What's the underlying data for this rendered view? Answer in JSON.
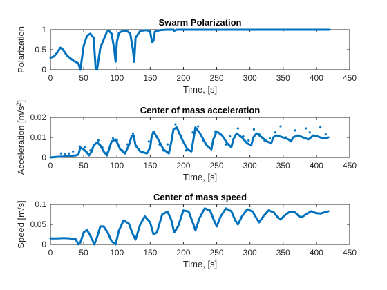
{
  "chart_data": [
    {
      "type": "line",
      "title": "Swarm Polarization",
      "xlabel": "Time, [s]",
      "ylabel": "Polarization",
      "xlim": [
        0,
        450
      ],
      "ylim": [
        0,
        1
      ],
      "xticks": [
        "0",
        "50",
        "100",
        "150",
        "200",
        "250",
        "300",
        "350",
        "400",
        "450"
      ],
      "yticks": [
        "0",
        "0.5",
        "1"
      ],
      "color": "#0072BD",
      "series": [
        {
          "style": "thick-line",
          "x": [
            0,
            5,
            10,
            15,
            18,
            25,
            35,
            42,
            45,
            50,
            55,
            60,
            65,
            68,
            70,
            75,
            85,
            88,
            92,
            96,
            98,
            100,
            103,
            110,
            115,
            120,
            124,
            126,
            128,
            135,
            145,
            150,
            153,
            155,
            157,
            165,
            175,
            185,
            186,
            190,
            200,
            220,
            260,
            300,
            350,
            420
          ],
          "y": [
            0.3,
            0.33,
            0.42,
            0.55,
            0.52,
            0.35,
            0.22,
            0.16,
            0.0,
            0.6,
            0.85,
            0.9,
            0.8,
            0.05,
            0.0,
            0.55,
            0.95,
            0.97,
            0.9,
            0.5,
            0.2,
            0.7,
            0.92,
            0.98,
            0.97,
            0.9,
            0.5,
            0.2,
            0.8,
            0.97,
            0.99,
            0.95,
            0.68,
            0.72,
            0.95,
            0.99,
            1.0,
            1.0,
            0.97,
            1.0,
            1.0,
            1.0,
            1.0,
            1.0,
            1.0,
            1.0
          ]
        }
      ]
    },
    {
      "type": "line",
      "title": "Center of mass acceleration",
      "xlabel": "Time, [s]",
      "ylabel": "Acceleration [m/s",
      "ylabel_superscript": "2",
      "ylabel_suffix": "]",
      "xlim": [
        0,
        450
      ],
      "ylim": [
        0,
        0.02
      ],
      "xticks": [
        "0",
        "50",
        "100",
        "150",
        "200",
        "250",
        "300",
        "350",
        "400",
        "450"
      ],
      "yticks": [
        "0",
        "0.01",
        "0.02"
      ],
      "color": "#0072BD",
      "series": [
        {
          "style": "thick-line",
          "x": [
            0,
            10,
            20,
            30,
            38,
            42,
            45,
            50,
            55,
            58,
            62,
            65,
            70,
            75,
            80,
            85,
            88,
            92,
            98,
            105,
            112,
            118,
            122,
            125,
            128,
            135,
            145,
            150,
            152,
            155,
            162,
            170,
            178,
            182,
            185,
            190,
            198,
            206,
            212,
            215,
            218,
            225,
            235,
            242,
            245,
            250,
            258,
            266,
            272,
            275,
            280,
            288,
            296,
            302,
            305,
            310,
            318,
            326,
            332,
            335,
            340,
            350,
            358,
            362,
            365,
            372,
            380,
            388,
            392,
            395,
            402,
            410,
            418
          ],
          "y": [
            0.0,
            0.0003,
            0.0005,
            0.0008,
            0.001,
            0.0015,
            0.005,
            0.004,
            0.0025,
            0.001,
            0.003,
            0.006,
            0.0075,
            0.006,
            0.003,
            0.001,
            0.004,
            0.008,
            0.009,
            0.004,
            0.002,
            0.006,
            0.0105,
            0.011,
            0.006,
            0.003,
            0.002,
            0.005,
            0.01,
            0.013,
            0.009,
            0.004,
            0.002,
            0.008,
            0.014,
            0.015,
            0.009,
            0.004,
            0.003,
            0.009,
            0.015,
            0.012,
            0.006,
            0.004,
            0.009,
            0.013,
            0.011,
            0.007,
            0.005,
            0.009,
            0.012,
            0.01,
            0.007,
            0.006,
            0.01,
            0.012,
            0.01,
            0.008,
            0.007,
            0.01,
            0.011,
            0.01,
            0.009,
            0.008,
            0.01,
            0.011,
            0.01,
            0.009,
            0.01,
            0.011,
            0.0105,
            0.0095,
            0.01
          ]
        },
        {
          "style": "dots",
          "x": [
            16,
            22,
            28,
            34,
            44,
            52,
            60,
            72,
            78,
            86,
            94,
            100,
            108,
            116,
            124,
            130,
            138,
            148,
            156,
            164,
            170,
            176,
            188,
            196,
            204,
            214,
            222,
            230,
            238,
            248,
            256,
            264,
            270,
            282,
            290,
            298,
            306,
            314,
            322,
            330,
            338,
            346,
            354,
            360,
            368,
            376,
            384,
            390,
            398,
            406,
            414
          ],
          "y": [
            0.002,
            0.0015,
            0.002,
            0.003,
            0.0055,
            0.005,
            0.0035,
            0.0085,
            0.005,
            0.0025,
            0.0095,
            0.0085,
            0.0035,
            0.0065,
            0.012,
            0.0055,
            0.0025,
            0.008,
            0.0125,
            0.0065,
            0.0035,
            0.0065,
            0.0165,
            0.011,
            0.0035,
            0.0125,
            0.0155,
            0.0085,
            0.0055,
            0.013,
            0.0115,
            0.0065,
            0.0105,
            0.0145,
            0.0105,
            0.0085,
            0.014,
            0.0115,
            0.0085,
            0.0095,
            0.0125,
            0.0155,
            0.01,
            0.0085,
            0.0135,
            0.0105,
            0.0145,
            0.0125,
            0.0105,
            0.015,
            0.0115
          ]
        }
      ]
    },
    {
      "type": "line",
      "title": "Center of mass speed",
      "xlabel": "Time, [s]",
      "ylabel": "Speed [m/s]",
      "xlim": [
        0,
        450
      ],
      "ylim": [
        0,
        0.1
      ],
      "xticks": [
        "0",
        "50",
        "100",
        "150",
        "200",
        "250",
        "300",
        "350",
        "400",
        "450"
      ],
      "yticks": [
        "0",
        "0.05",
        "0.1"
      ],
      "color": "#0072BD",
      "series": [
        {
          "style": "thick-line",
          "x": [
            0,
            10,
            20,
            30,
            38,
            42,
            45,
            50,
            55,
            60,
            66,
            70,
            75,
            80,
            86,
            92,
            98,
            103,
            110,
            118,
            124,
            128,
            135,
            142,
            150,
            155,
            160,
            168,
            176,
            182,
            186,
            192,
            200,
            208,
            214,
            218,
            224,
            232,
            240,
            246,
            250,
            256,
            264,
            272,
            278,
            282,
            288,
            296,
            304,
            310,
            314,
            320,
            328,
            336,
            342,
            346,
            352,
            360,
            368,
            374,
            378,
            384,
            392,
            400,
            406,
            412,
            418
          ],
          "y": [
            0.015,
            0.015,
            0.016,
            0.015,
            0.013,
            0.0,
            0.005,
            0.03,
            0.036,
            0.022,
            0.0,
            0.018,
            0.045,
            0.045,
            0.03,
            0.008,
            0.0,
            0.035,
            0.06,
            0.052,
            0.025,
            0.012,
            0.05,
            0.07,
            0.055,
            0.025,
            0.03,
            0.075,
            0.082,
            0.06,
            0.03,
            0.045,
            0.085,
            0.082,
            0.055,
            0.035,
            0.065,
            0.09,
            0.085,
            0.06,
            0.045,
            0.07,
            0.09,
            0.083,
            0.06,
            0.05,
            0.07,
            0.088,
            0.082,
            0.065,
            0.055,
            0.07,
            0.085,
            0.08,
            0.067,
            0.062,
            0.072,
            0.082,
            0.08,
            0.07,
            0.068,
            0.075,
            0.083,
            0.078,
            0.077,
            0.08,
            0.083
          ]
        }
      ]
    }
  ]
}
